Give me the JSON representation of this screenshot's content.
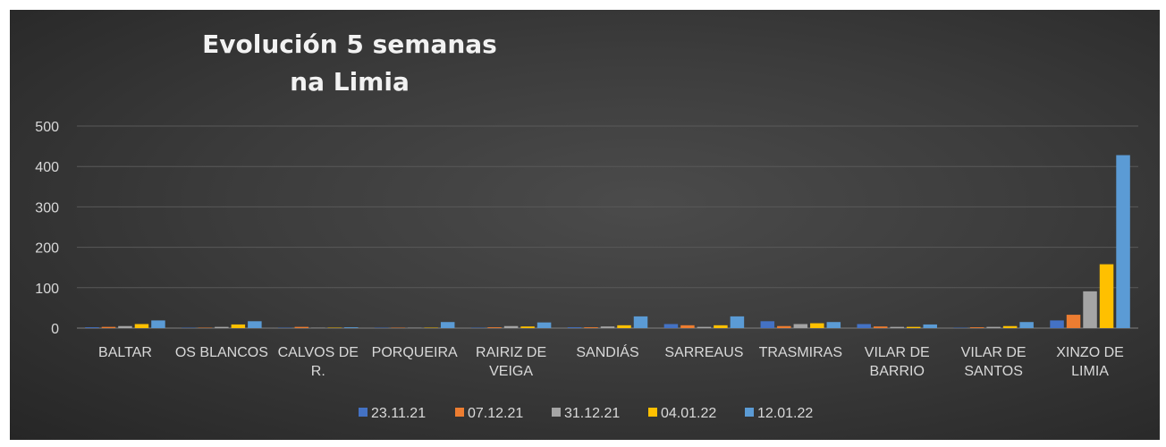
{
  "chart_data": {
    "type": "bar",
    "title_lines": [
      "Evolución 5 semanas",
      "na Limia"
    ],
    "categories": [
      [
        "BALTAR"
      ],
      [
        "OS BLANCOS"
      ],
      [
        "CALVOS DE",
        "R."
      ],
      [
        "PORQUEIRA"
      ],
      [
        "RAIRIZ DE",
        "VEIGA"
      ],
      [
        "SANDIÁS"
      ],
      [
        "SARREAUS"
      ],
      [
        "TRASMIRAS"
      ],
      [
        "VILAR DE",
        "BARRIO"
      ],
      [
        "VILAR DE",
        "SANTOS"
      ],
      [
        "XINZO DE",
        "LIMIA"
      ]
    ],
    "series": [
      {
        "name": "23.11.21",
        "color": "#4472c4",
        "values": [
          2,
          1,
          1,
          1,
          1,
          2,
          10,
          17,
          10,
          1,
          19
        ]
      },
      {
        "name": "07.12.21",
        "color": "#ed7d31",
        "values": [
          3,
          1,
          3,
          1,
          2,
          2,
          7,
          5,
          4,
          2,
          33
        ]
      },
      {
        "name": "31.12.21",
        "color": "#a5a5a5",
        "values": [
          5,
          3,
          1,
          1,
          5,
          4,
          3,
          10,
          3,
          3,
          91
        ]
      },
      {
        "name": "04.01.22",
        "color": "#ffc000",
        "values": [
          10,
          9,
          1,
          1,
          4,
          7,
          7,
          12,
          3,
          5,
          158
        ]
      },
      {
        "name": "12.01.22",
        "color": "#5b9bd5",
        "values": [
          19,
          17,
          2,
          15,
          14,
          29,
          29,
          15,
          9,
          15,
          428
        ]
      }
    ],
    "yticks": [
      0,
      100,
      200,
      300,
      400,
      500
    ],
    "ylim": [
      0,
      500
    ],
    "legend_position": "bottom",
    "grid": true
  }
}
